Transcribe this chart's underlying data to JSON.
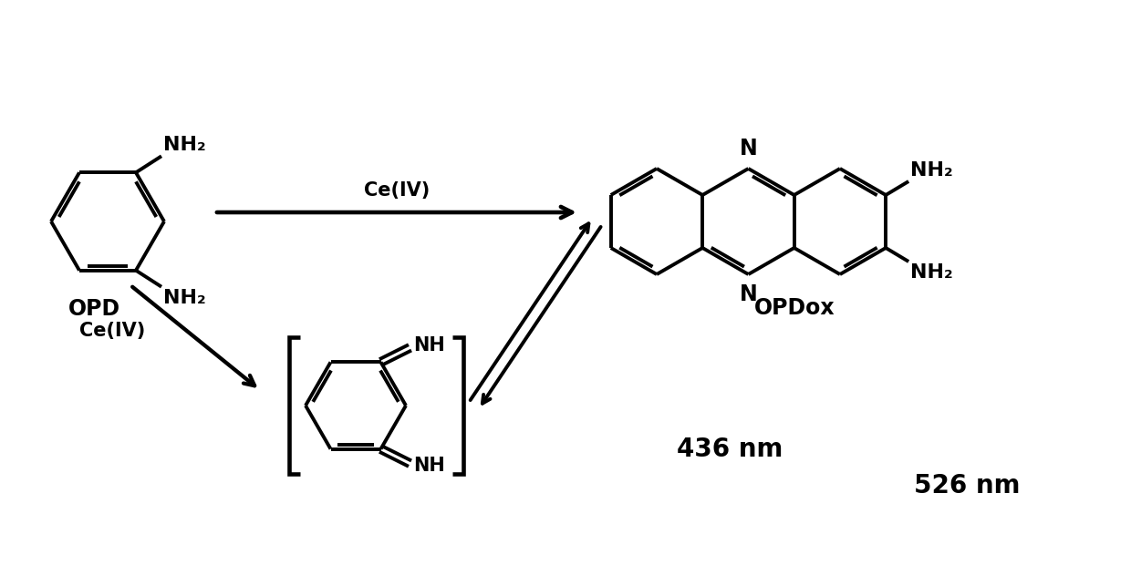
{
  "bg_color": "#ffffff",
  "line_color": "#000000",
  "lw": 2.8,
  "label_opd": "OPD",
  "label_opdox": "OPDox",
  "label_ce_top": "Ce(IV)",
  "label_ce_bottom": "Ce(IV)",
  "label_nh2_top": "NH₂",
  "label_nh2_bottom": "NH₂",
  "label_nh_top": "NH",
  "label_nh_bottom": "NH",
  "label_N_top": "N",
  "label_N_bottom": "N",
  "label_NH2_right_top": "NH₂",
  "label_NH2_right_bottom": "NH₂",
  "label_436": "436 nm",
  "label_526": "526 nm",
  "figsize": [
    12.4,
    6.43
  ],
  "dpi": 100
}
